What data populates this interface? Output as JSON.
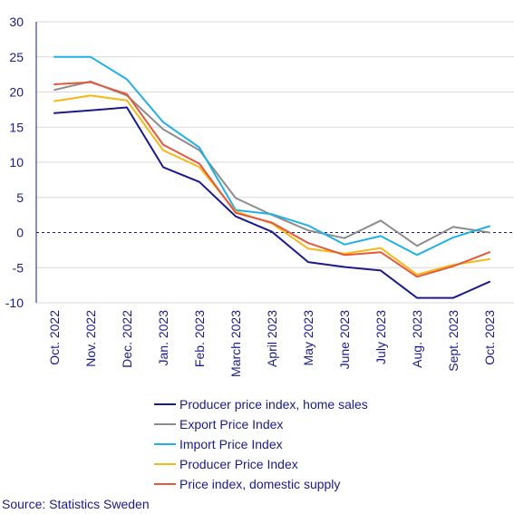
{
  "chart_data": {
    "type": "line",
    "categories": [
      "Oct. 2022",
      "Nov. 2022",
      "Dec. 2022",
      "Jan. 2023",
      "Feb. 2023",
      "March 2023",
      "April 2023",
      "May 2023",
      "June 2023",
      "July 2023",
      "Aug. 2023",
      "Sept. 2023",
      "Oct. 2023"
    ],
    "ylim": [
      -10,
      30
    ],
    "yticks": [
      -10,
      -5,
      0,
      5,
      10,
      15,
      20,
      25,
      30
    ],
    "grid": "horizontal",
    "legend_position": "bottom",
    "series": [
      {
        "name": "Producer price index, home sales",
        "color": "#1a1a8c",
        "values": [
          17.0,
          17.4,
          17.8,
          9.3,
          7.2,
          2.3,
          0.1,
          -4.2,
          -4.9,
          -5.4,
          -9.3,
          -9.3,
          -7.0
        ]
      },
      {
        "name": "Export Price Index",
        "color": "#8c8c8c",
        "values": [
          20.3,
          21.5,
          19.5,
          14.7,
          11.7,
          4.9,
          2.5,
          0.3,
          -0.8,
          1.7,
          -1.9,
          0.8,
          0.0
        ]
      },
      {
        "name": "Import Price Index",
        "color": "#1fb1e6",
        "values": [
          25.0,
          25.0,
          21.8,
          15.7,
          12.1,
          3.2,
          2.6,
          1.0,
          -1.7,
          -0.5,
          -3.2,
          -0.7,
          0.9
        ]
      },
      {
        "name": "Producer Price Index",
        "color": "#f5b814",
        "values": [
          18.7,
          19.5,
          18.8,
          11.7,
          9.3,
          3.0,
          1.3,
          -2.3,
          -3.0,
          -2.2,
          -6.0,
          -4.6,
          -3.8
        ]
      },
      {
        "name": "Price index, domestic supply",
        "color": "#e4583e",
        "values": [
          21.1,
          21.4,
          19.7,
          12.5,
          9.8,
          2.8,
          1.4,
          -1.5,
          -3.2,
          -2.8,
          -6.3,
          -4.8,
          -2.8
        ]
      }
    ],
    "source": "Source: Statistics Sweden"
  }
}
